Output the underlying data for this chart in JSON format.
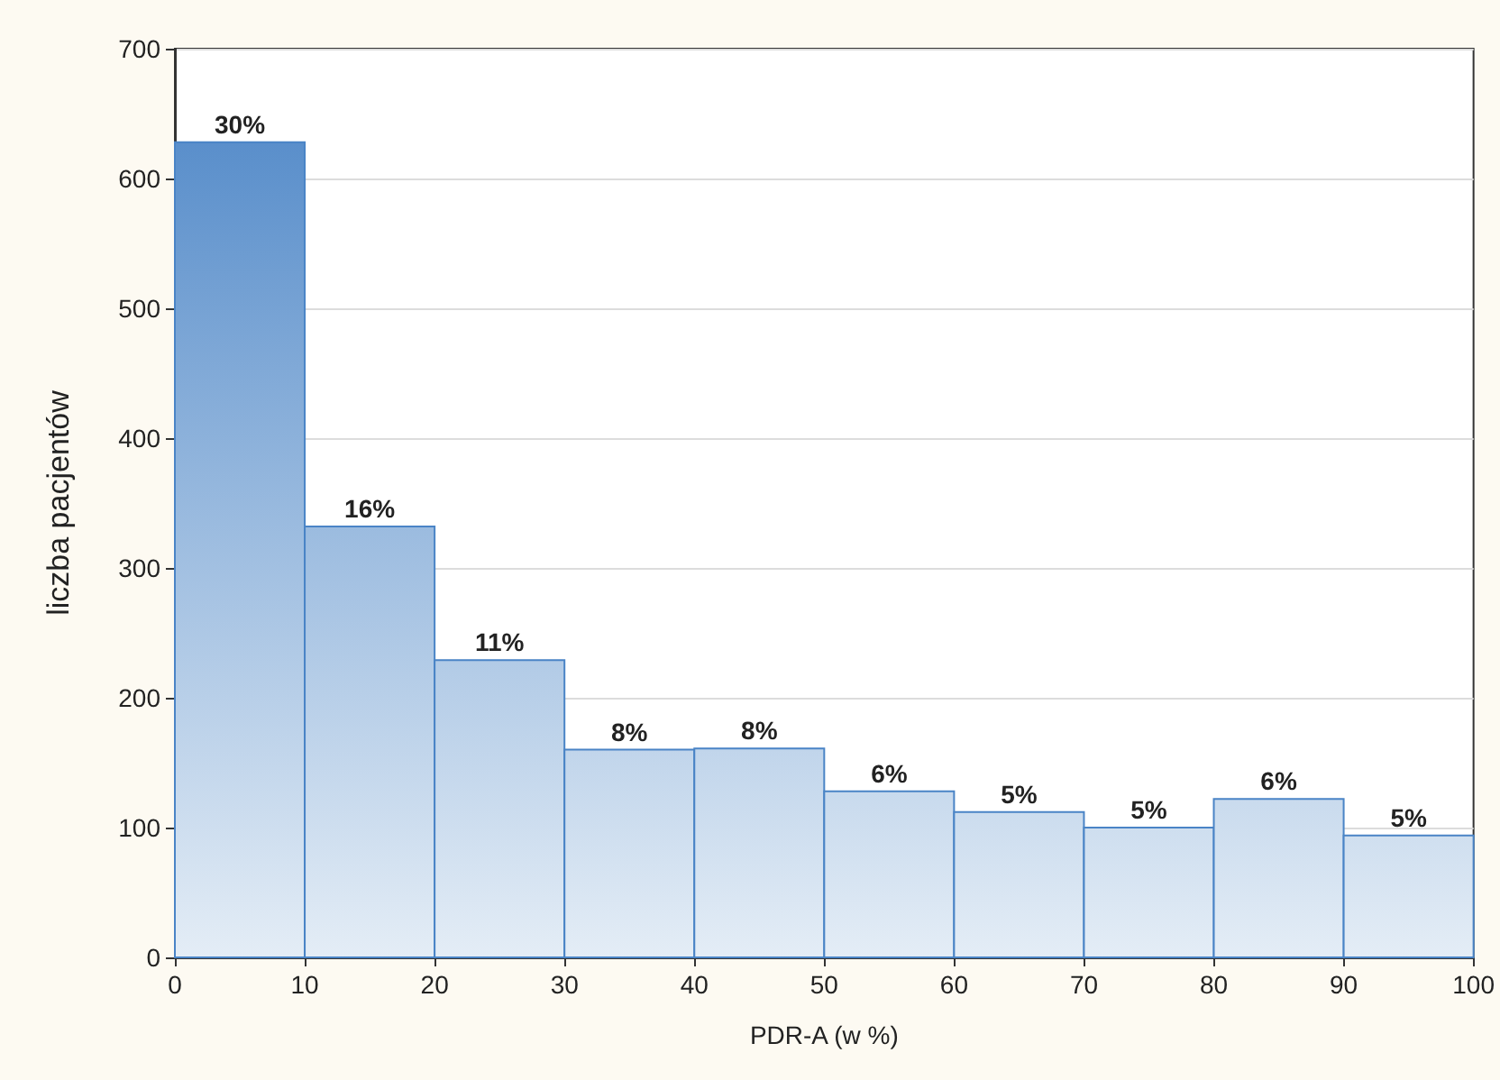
{
  "chart_data": {
    "type": "histogram",
    "xlabel": "PDR-A (w %)",
    "ylabel": "liczba pacjentów",
    "bins": [
      0,
      10,
      20,
      30,
      40,
      50,
      60,
      70,
      80,
      90,
      100
    ],
    "values": [
      628,
      332,
      229,
      160,
      161,
      128,
      112,
      100,
      122,
      94
    ],
    "annotations": [
      {
        "text": "30%",
        "x": 5,
        "y": 628
      },
      {
        "text": "16%",
        "x": 15,
        "y": 332
      },
      {
        "text": "11%",
        "x": 25,
        "y": 229
      },
      {
        "text": "8%",
        "x": 35,
        "y": 160
      },
      {
        "text": "8%",
        "x": 45,
        "y": 161
      },
      {
        "text": "6%",
        "x": 55,
        "y": 128
      },
      {
        "text": "5%",
        "x": 65,
        "y": 112
      },
      {
        "text": "5%",
        "x": 75,
        "y": 100
      },
      {
        "text": "6%",
        "x": 85,
        "y": 122
      },
      {
        "text": "5%",
        "x": 95,
        "y": 94
      }
    ],
    "color": "#4a84c6",
    "xlim": [
      0,
      100
    ],
    "xticks": [
      0,
      10,
      20,
      30,
      40,
      50,
      60,
      70,
      80,
      90,
      100
    ],
    "ylim": [
      0,
      700
    ],
    "yticks": [
      0,
      100,
      200,
      300,
      400,
      500,
      600,
      700
    ],
    "grid": "y"
  }
}
